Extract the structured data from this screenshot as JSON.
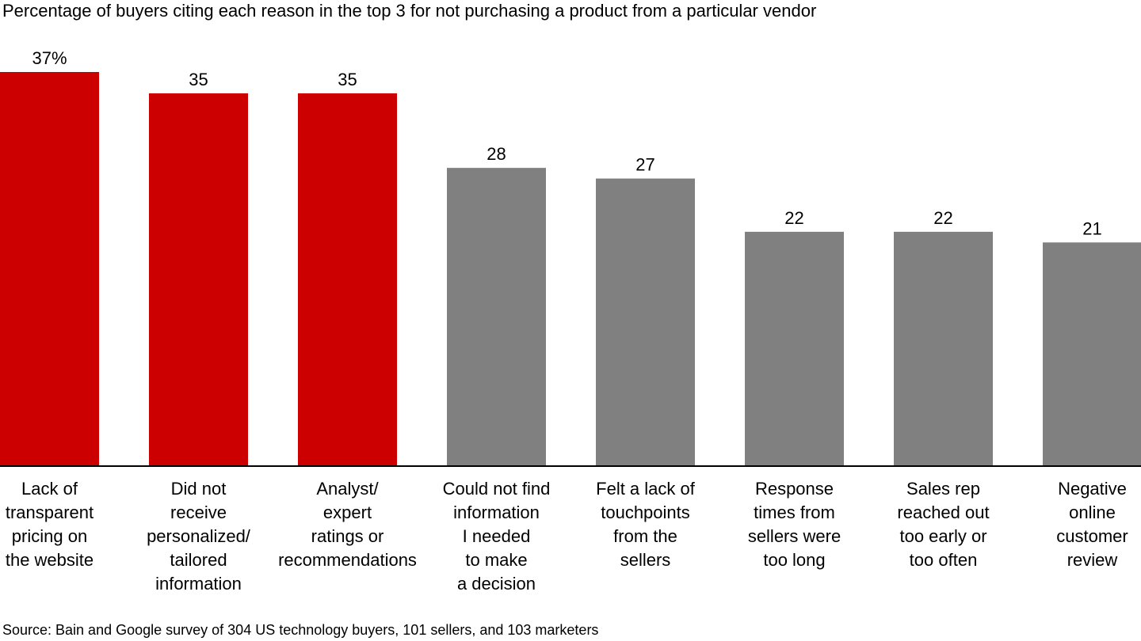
{
  "chart_data": {
    "type": "bar",
    "title": "Percentage of buyers citing each reason in the top 3 for not purchasing a product from a particular vendor",
    "source": "Source: Bain and Google survey of 304 US technology buyers, 101 sellers, and 103 marketers",
    "categories": [
      [
        "Lack of",
        "transparent",
        "pricing on",
        "the website"
      ],
      [
        "Did not",
        "receive",
        "personalized/",
        "tailored",
        "information"
      ],
      [
        "Analyst/",
        "expert",
        "ratings or",
        "recommendations"
      ],
      [
        "Could not find",
        "information",
        "I needed",
        "to make",
        "a decision"
      ],
      [
        "Felt a lack of",
        "touchpoints",
        "from the",
        "sellers"
      ],
      [
        "Response",
        "times from",
        "sellers were",
        "too long"
      ],
      [
        "Sales rep",
        "reached out",
        "too early or",
        "too often"
      ],
      [
        "Negative",
        "online",
        "customer",
        "review"
      ]
    ],
    "values": [
      37,
      35,
      35,
      28,
      27,
      22,
      22,
      21
    ],
    "value_labels": [
      "37%",
      "35",
      "35",
      "28",
      "27",
      "22",
      "22",
      "21"
    ],
    "ylim": [
      0,
      37
    ],
    "grid": false,
    "colors": {
      "highlight": "#cc0000",
      "default": "#808080",
      "axis": "#000000"
    },
    "highlight_indices": [
      0,
      1,
      2
    ]
  }
}
